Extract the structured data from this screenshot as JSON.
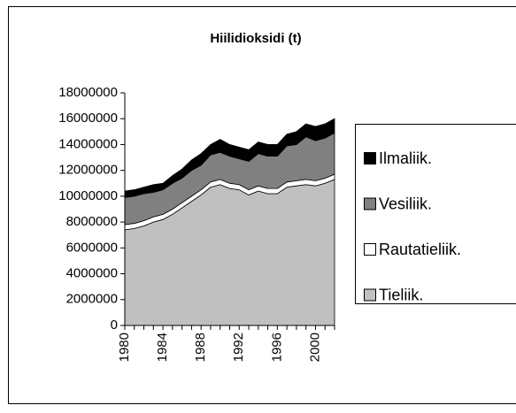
{
  "chart_data": {
    "type": "area",
    "stacked": true,
    "title": "Hiilidioksidi (t)",
    "x": [
      1980,
      1981,
      1982,
      1983,
      1984,
      1985,
      1986,
      1987,
      1988,
      1989,
      1990,
      1991,
      1992,
      1993,
      1994,
      1995,
      1996,
      1997,
      1998,
      1999,
      2000,
      2001,
      2002
    ],
    "xlim": [
      1980,
      2002
    ],
    "xticks": [
      1980,
      1984,
      1988,
      1992,
      1996,
      2000
    ],
    "ylim": [
      0,
      18000000
    ],
    "yticks": [
      0,
      2000000,
      4000000,
      6000000,
      8000000,
      10000000,
      12000000,
      14000000,
      16000000,
      18000000
    ],
    "series": [
      {
        "name": "Tieliik.",
        "color": "#c0c0c0",
        "values": [
          7400000,
          7500000,
          7700000,
          8000000,
          8200000,
          8600000,
          9100000,
          9600000,
          10100000,
          10700000,
          10900000,
          10600000,
          10500000,
          10100000,
          10400000,
          10200000,
          10200000,
          10700000,
          10800000,
          10900000,
          10800000,
          11000000,
          11300000
        ]
      },
      {
        "name": "Rautatieliik.",
        "color": "#ffffff",
        "values": [
          400000,
          400000,
          400000,
          400000,
          400000,
          400000,
          400000,
          400000,
          400000,
          400000,
          400000,
          400000,
          400000,
          400000,
          400000,
          400000,
          400000,
          400000,
          400000,
          400000,
          400000,
          400000,
          400000
        ]
      },
      {
        "name": "Vesiliik.",
        "color": "#808080",
        "values": [
          2100000,
          2100000,
          2100000,
          1900000,
          1900000,
          2000000,
          1900000,
          2000000,
          1900000,
          2100000,
          2100000,
          2100000,
          2000000,
          2200000,
          2500000,
          2500000,
          2500000,
          2800000,
          2800000,
          3300000,
          3100000,
          3100000,
          3200000
        ]
      },
      {
        "name": "Ilmaliik.",
        "color": "#000000",
        "values": [
          500000,
          500000,
          500000,
          600000,
          500000,
          600000,
          700000,
          800000,
          900000,
          800000,
          1000000,
          900000,
          900000,
          900000,
          900000,
          900000,
          900000,
          900000,
          1000000,
          1000000,
          1100000,
          1100000,
          1100000
        ]
      }
    ]
  }
}
